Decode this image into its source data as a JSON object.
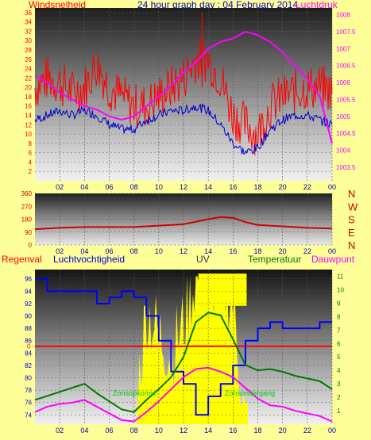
{
  "header": {
    "left_label": "Windsnelheid",
    "title": "24 hour graph day : 04 February 2014",
    "right_label": "Luchtdruk"
  },
  "labels": {
    "rain": "Regenval",
    "humidity": "Luchtvochtigheid",
    "uv": "UV",
    "temperature": "Temperatuur",
    "dewpoint": "Dauwpunt",
    "sunrise": "Zonsopkomst",
    "sunset": "Zonsondergang"
  },
  "colors": {
    "background": "#ffff99",
    "wind": "#ff0000",
    "gust_base": "#0000cc",
    "pressure": "#ff00ff",
    "direction": "#cc0000",
    "humidity": "#0000ff",
    "temperature": "#007700",
    "dewpoint": "#ff00ff",
    "uv": "#ffff00",
    "rain": "#ff0000"
  },
  "chart_data": [
    {
      "type": "line",
      "name": "wind-pressure",
      "x_ticks": [
        "02",
        "04",
        "06",
        "08",
        "10",
        "12",
        "14",
        "16",
        "18",
        "20",
        "22",
        "00"
      ],
      "y_left_ticks": [
        36,
        34,
        32,
        30,
        28,
        26,
        24,
        22,
        20,
        18,
        16,
        14,
        12,
        10,
        8,
        6,
        4,
        2
      ],
      "y_right_ticks": [
        "1008",
        "1007.5",
        "1007",
        "1006.5",
        "1006",
        "1005.5",
        "1005",
        "1004.5",
        "1004",
        "1003.5"
      ],
      "ylim_left": [
        0,
        37
      ],
      "ylim_right": [
        1003.1,
        1008.2
      ],
      "x": [
        0,
        1,
        2,
        3,
        4,
        5,
        6,
        7,
        8,
        9,
        10,
        11,
        12,
        13,
        14,
        15,
        16,
        17,
        18,
        19,
        20,
        21,
        22,
        23,
        24
      ],
      "series": [
        {
          "values": [
            20,
            22,
            21,
            19,
            20,
            25,
            20,
            18,
            16,
            16,
            18,
            20,
            22,
            26,
            26,
            22,
            14,
            12,
            10,
            16,
            18,
            19,
            20,
            20,
            19
          ]
        },
        {
          "values": [
            13,
            14,
            15,
            14,
            15,
            14,
            12,
            11,
            11,
            13,
            14,
            15,
            15,
            16,
            15,
            12,
            8,
            6,
            7,
            11,
            13,
            14,
            14,
            13,
            12
          ]
        },
        {
          "values": [
            1006.2,
            1006.0,
            1005.7,
            1005.5,
            1005.3,
            1005.2,
            1005.0,
            1004.9,
            1005.0,
            1005.3,
            1005.6,
            1005.9,
            1006.3,
            1006.6,
            1007.0,
            1007.2,
            1007.3,
            1007.5,
            1007.4,
            1007.2,
            1006.9,
            1006.5,
            1006.1,
            1005.6,
            1004.2
          ]
        }
      ]
    },
    {
      "type": "line",
      "name": "wind-direction",
      "x_ticks": [
        "02",
        "04",
        "06",
        "08",
        "10",
        "12",
        "14",
        "16",
        "18",
        "20",
        "22",
        "00"
      ],
      "y_ticks": [
        360,
        270,
        180,
        90,
        0
      ],
      "y_right_ticks": [
        "N",
        "W",
        "S",
        "E",
        "N"
      ],
      "ylim": [
        0,
        360
      ],
      "x": [
        0,
        2,
        4,
        6,
        8,
        10,
        12,
        14,
        15,
        16,
        17,
        18,
        20,
        22,
        24
      ],
      "values": [
        110,
        120,
        125,
        125,
        125,
        135,
        145,
        180,
        195,
        190,
        160,
        140,
        130,
        120,
        115
      ]
    },
    {
      "type": "line",
      "name": "humidity-temperature-uv",
      "x_ticks": [
        "02",
        "04",
        "06",
        "08",
        "10",
        "12",
        "14",
        "16",
        "18",
        "20",
        "22",
        "00"
      ],
      "y_left_ticks": [
        96,
        94,
        92,
        90,
        88,
        86,
        84,
        82,
        80,
        78,
        76,
        74
      ],
      "y_right_ticks": [
        11,
        10,
        9,
        8,
        7,
        6,
        5,
        4,
        3,
        2,
        1
      ],
      "rain_marker": "0",
      "ylim_left": [
        72.5,
        97.5
      ],
      "ylim_right": [
        0,
        11.5
      ],
      "x": [
        0,
        1,
        2,
        3,
        4,
        5,
        6,
        7,
        8,
        9,
        10,
        11,
        12,
        13,
        14,
        15,
        16,
        17,
        18,
        19,
        20,
        21,
        22,
        23,
        24
      ],
      "series": [
        {
          "values": [
            96,
            94,
            94,
            94,
            94,
            92,
            93,
            94,
            93,
            90,
            86,
            81,
            79,
            74,
            77,
            79,
            82,
            86,
            88,
            89,
            88,
            88,
            88,
            89,
            89
          ]
        },
        {
          "values": [
            1.8,
            2.1,
            2.4,
            2.7,
            3.0,
            2.3,
            1.7,
            1.1,
            0.9,
            1.8,
            2.6,
            3.5,
            5.0,
            7.6,
            8.3,
            8.1,
            6.3,
            4.4,
            4.0,
            4.1,
            3.9,
            3.6,
            3.4,
            3.2,
            2.6
          ]
        },
        {
          "values": [
            0.9,
            1.3,
            1.5,
            1.6,
            1.8,
            1.3,
            0.8,
            0.3,
            0.2,
            0.9,
            1.7,
            2.6,
            3.5,
            4.1,
            4.2,
            3.9,
            3.5,
            2.7,
            1.9,
            1.4,
            1.3,
            1.0,
            0.8,
            0.6,
            0.2
          ]
        },
        {
          "values": [
            0,
            0,
            0,
            0,
            0,
            0,
            0,
            0,
            0.2,
            8.5,
            6.8,
            5.2,
            7.5,
            11,
            10.5,
            11,
            9,
            0,
            0,
            0,
            0,
            0,
            0,
            0,
            0
          ]
        }
      ]
    }
  ]
}
